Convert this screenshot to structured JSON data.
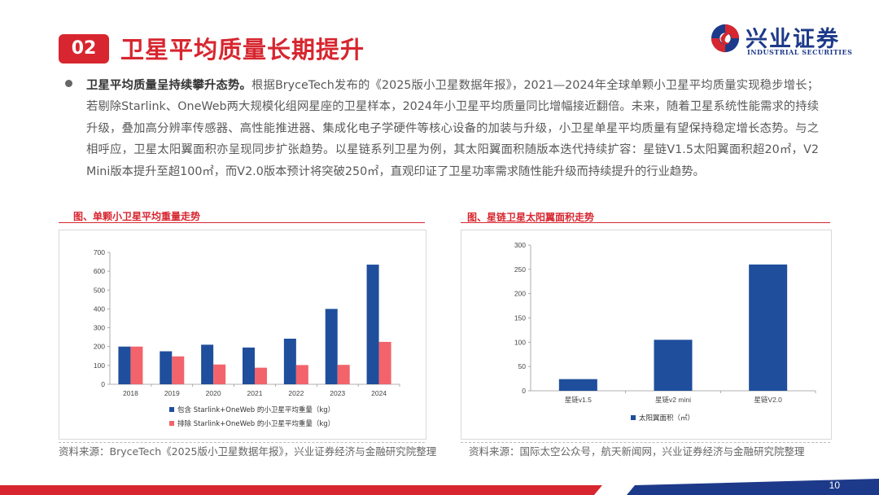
{
  "header": {
    "section_number": "02",
    "title": "卫星平均质量长期提升"
  },
  "logo": {
    "name_cn": "兴业证券",
    "name_en": "INDUSTRIAL SECURITIES",
    "colors": {
      "red": "#d7262f",
      "blue": "#1d3a8a"
    }
  },
  "summary": {
    "lead": "卫星平均质量呈持续攀升态势。",
    "body": "根据BryceTech发布的《2025版小卫星数据年报》，2021—2024年全球单颗小卫星平均质量实现稳步增长；若剔除Starlink、OneWeb两大规模化组网星座的卫星样本，2024年小卫星平均质量同比增幅接近翻倍。未来，随着卫星系统性能需求的持续升级，叠加高分辨率传感器、高性能推进器、集成化电子学硬件等核心设备的加装与升级，小卫星单星平均质量有望保持稳定增长态势。与之相呼应，卫星太阳翼面积亦呈现同步扩张趋势。以星链系列卫星为例，其太阳翼面积随版本迭代持续扩容：星链V1.5太阳翼面积超20㎡，V2 Mini版本提升至超100㎡，而V2.0版本预计将突破250㎡，直观印证了卫星功率需求随性能升级而持续提升的行业趋势。"
  },
  "chart1": {
    "title": "图、单颗小卫星平均重量走势",
    "source": "资料来源：BryceTech《2025版小卫星数据年报》，兴业证券经济与金融研究院整理"
  },
  "chart2": {
    "title": "图、星链卫星太阳翼面积走势",
    "source": "资料来源：国际太空公众号，航天新闻网，兴业证券经济与金融研究院整理"
  },
  "chart_data": [
    {
      "type": "bar",
      "title": "图、单颗小卫星平均重量走势",
      "categories": [
        "2018",
        "2019",
        "2020",
        "2021",
        "2022",
        "2023",
        "2024"
      ],
      "series": [
        {
          "name": "包含 Starlink+OneWeb 的小卫星平均重量（kg）",
          "color": "#1f4e9c",
          "values": [
            200,
            175,
            210,
            195,
            242,
            400,
            635
          ]
        },
        {
          "name": "排除 Starlink+OneWeb 的小卫星平均重量（kg）",
          "color": "#f2636b",
          "values": [
            200,
            148,
            105,
            88,
            102,
            103,
            225
          ]
        }
      ],
      "ylim": [
        0,
        700
      ],
      "yticks": [
        "0",
        "100",
        "200",
        "300",
        "400",
        "500",
        "600",
        "700"
      ],
      "legend": "bottom",
      "grid": false
    },
    {
      "type": "bar",
      "title": "图、星链卫星太阳翼面积走势",
      "categories": [
        "星链v1.5",
        "星链v2 mini",
        "星链V2.0"
      ],
      "series": [
        {
          "name": "太阳翼面积（㎡）",
          "color": "#1f4e9c",
          "values": [
            24,
            105,
            260
          ]
        }
      ],
      "ylim": [
        0,
        300
      ],
      "yticks": [
        "0",
        "50",
        "100",
        "150",
        "200",
        "250",
        "300"
      ],
      "legend": "bottom",
      "grid": false
    }
  ],
  "footer": {
    "page_number": "10",
    "colors": {
      "red": "#d7262f",
      "blue": "#1d3a8a"
    }
  }
}
